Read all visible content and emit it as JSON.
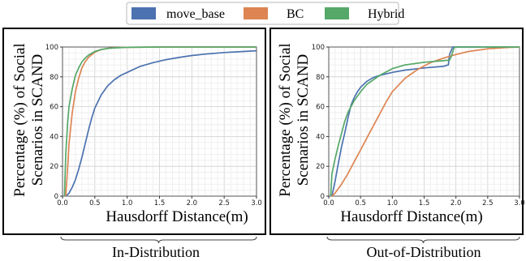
{
  "legend": {
    "entries": [
      {
        "label": "move_base",
        "color": "#4c72b0"
      },
      {
        "label": "BC",
        "color": "#dd8452"
      },
      {
        "label": "Hybrid",
        "color": "#55a868"
      }
    ]
  },
  "chart_data": [
    {
      "type": "line",
      "title": "",
      "caption": "In-Distribution",
      "xlabel": "Hausdorff Distance(m)",
      "ylabel": "Percentage (%) of Social Scenarios in SCAND",
      "xlim": [
        0,
        3.0
      ],
      "ylim": [
        0,
        100
      ],
      "xticks": [
        0.0,
        0.5,
        1.0,
        1.5,
        2.0,
        2.5,
        3.0
      ],
      "yticks": [
        0,
        20,
        40,
        60,
        80,
        100
      ],
      "xtick_labels": [
        "0.0",
        "0.5",
        "1.0",
        "1.5",
        "2.0",
        "2.5",
        "3.0"
      ],
      "ytick_labels": [
        "0",
        "20",
        "40",
        "60",
        "80",
        "100"
      ],
      "grid": true,
      "legend_position": "top",
      "series": [
        {
          "name": "move_base",
          "color": "#4c72b0",
          "x": [
            0.05,
            0.1,
            0.15,
            0.2,
            0.25,
            0.3,
            0.35,
            0.4,
            0.45,
            0.5,
            0.6,
            0.7,
            0.8,
            0.9,
            1.0,
            1.2,
            1.4,
            1.6,
            1.8,
            2.0,
            2.2,
            2.5,
            2.8,
            3.0
          ],
          "y": [
            0,
            2,
            6,
            11,
            18,
            26,
            35,
            44,
            52,
            59,
            68,
            74,
            78,
            81,
            83,
            87,
            89.5,
            91.5,
            93,
            94.3,
            95.2,
            96.3,
            97,
            97.5
          ]
        },
        {
          "name": "BC",
          "color": "#dd8452",
          "x": [
            0.05,
            0.08,
            0.1,
            0.15,
            0.2,
            0.25,
            0.3,
            0.35,
            0.4,
            0.5,
            0.6,
            0.7,
            0.8,
            1.0,
            1.5,
            2.0,
            3.0
          ],
          "y": [
            0,
            20,
            35,
            56,
            70,
            79,
            86,
            90,
            93,
            96.5,
            98.3,
            99.1,
            99.5,
            99.8,
            100,
            100,
            100
          ]
        },
        {
          "name": "Hybrid",
          "color": "#55a868",
          "x": [
            0.03,
            0.05,
            0.08,
            0.1,
            0.15,
            0.2,
            0.25,
            0.3,
            0.35,
            0.4,
            0.5,
            0.6,
            0.7,
            0.8,
            1.0,
            1.5,
            2.0,
            3.0
          ],
          "y": [
            0,
            28,
            50,
            60,
            72,
            81,
            86,
            90,
            92.5,
            94.5,
            97,
            98.3,
            99,
            99.4,
            99.8,
            100,
            100,
            100
          ]
        }
      ]
    },
    {
      "type": "line",
      "title": "",
      "caption": "Out-of-Distribution",
      "xlabel": "Hausdorff Distance(m)",
      "ylabel": "Percentage (%) of Social Scenarios in SCAND",
      "xlim": [
        0,
        3.0
      ],
      "ylim": [
        0,
        100
      ],
      "xticks": [
        0.0,
        0.5,
        1.0,
        1.5,
        2.0,
        2.5,
        3.0
      ],
      "yticks": [
        0,
        20,
        40,
        60,
        80,
        100
      ],
      "xtick_labels": [
        "0.0",
        "0.5",
        "1.0",
        "1.5",
        "2.0",
        "2.5",
        "3.0"
      ],
      "ytick_labels": [
        "0",
        "20",
        "40",
        "60",
        "80",
        "100"
      ],
      "grid": true,
      "legend_position": "top",
      "series": [
        {
          "name": "move_base",
          "color": "#4c72b0",
          "x": [
            0.05,
            0.1,
            0.15,
            0.2,
            0.25,
            0.3,
            0.35,
            0.4,
            0.45,
            0.5,
            0.6,
            0.7,
            0.8,
            1.0,
            1.2,
            1.5,
            1.8,
            1.88,
            1.9,
            1.95,
            2.0,
            2.5,
            3.0
          ],
          "y": [
            0,
            10,
            22,
            33,
            42,
            52,
            61,
            66,
            70,
            73,
            77,
            79.5,
            81,
            83,
            84.5,
            86,
            87,
            88,
            95,
            100,
            100,
            100,
            100
          ]
        },
        {
          "name": "BC",
          "color": "#dd8452",
          "x": [
            0.05,
            0.1,
            0.2,
            0.3,
            0.4,
            0.5,
            0.6,
            0.7,
            0.8,
            0.9,
            1.0,
            1.2,
            1.4,
            1.6,
            1.8,
            2.0,
            2.2,
            2.5,
            2.8,
            3.0
          ],
          "y": [
            0,
            2,
            8,
            15,
            23,
            31,
            39,
            47,
            55,
            63,
            70,
            79,
            85,
            89.5,
            92.5,
            95,
            97,
            98.8,
            99.6,
            100
          ]
        },
        {
          "name": "Hybrid",
          "color": "#55a868",
          "x": [
            0.03,
            0.05,
            0.1,
            0.15,
            0.2,
            0.25,
            0.3,
            0.35,
            0.4,
            0.5,
            0.6,
            0.8,
            1.0,
            1.2,
            1.5,
            1.8,
            1.9,
            1.93,
            1.97,
            2.0,
            2.5,
            3.0
          ],
          "y": [
            0,
            15,
            25,
            34,
            42,
            50,
            56,
            60,
            64,
            70,
            75,
            81,
            85.5,
            88,
            89.8,
            90.8,
            91.2,
            94,
            99.5,
            100,
            100,
            100
          ]
        }
      ]
    }
  ]
}
